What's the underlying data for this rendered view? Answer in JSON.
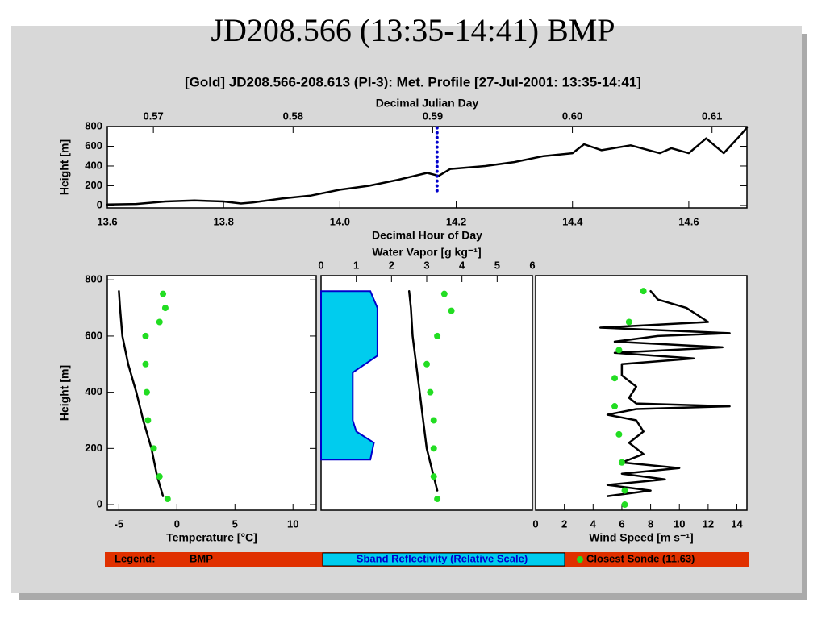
{
  "title": "JD208.566 (13:35-14:41) BMP",
  "subtitle": "[Gold] JD208.566-208.613 (PI-3): Met. Profile [27-Jul-2001: 13:35-14:41]",
  "legend": {
    "title": "Legend:",
    "items": [
      "BMP",
      "Sband Reflectivity (Relative Scale)",
      "Closest Sonde (11.63)"
    ]
  },
  "chart_data": [
    {
      "type": "line",
      "xlabel": "Decimal Hour of Day",
      "x2label": "Decimal Julian Day",
      "ylabel": "Height [m]",
      "x_axis_side": "bottom",
      "xlim": [
        13.6,
        14.7
      ],
      "xticks": [
        13.6,
        13.8,
        {
          "value": 14,
          "label": "14.0"
        },
        14.2,
        14.4,
        14.6
      ],
      "x2lim": [
        0.5667,
        0.6125
      ],
      "x2ticks": [
        0.57,
        0.58,
        0.59,
        {
          "value": 0.6,
          "label": "0.60"
        },
        0.61
      ],
      "ylim": [
        -25,
        800
      ],
      "yticks": [
        0,
        200,
        400,
        600,
        800
      ],
      "series": [
        {
          "color": "#000000",
          "style": "line",
          "x": [
            13.6,
            13.65,
            13.7,
            13.75,
            13.8,
            13.83,
            13.85,
            13.9,
            13.95,
            14.0,
            14.05,
            14.1,
            14.15,
            14.17,
            14.19,
            14.25,
            14.3,
            14.35,
            14.4,
            14.42,
            14.45,
            14.5,
            14.55,
            14.57,
            14.6,
            14.63,
            14.66,
            14.69,
            14.7
          ],
          "y": [
            10,
            15,
            40,
            50,
            40,
            20,
            30,
            70,
            100,
            160,
            200,
            260,
            330,
            300,
            370,
            400,
            440,
            500,
            530,
            620,
            560,
            610,
            530,
            580,
            530,
            680,
            530,
            720,
            790
          ]
        },
        {
          "color": "#0000cc",
          "style": "dotted",
          "x": [
            14.167,
            14.167
          ],
          "y": [
            150,
            800
          ]
        }
      ]
    },
    {
      "type": "line",
      "xlabel": "Temperature [°C]",
      "ylabel": "Height [m]",
      "x_axis_side": "bottom",
      "xlim": [
        -6,
        12
      ],
      "xticks": [
        -5,
        0,
        5,
        10
      ],
      "ylim": [
        -20,
        815
      ],
      "yticks": [
        0,
        200,
        400,
        600,
        800
      ],
      "series": [
        {
          "color": "#000000",
          "style": "line",
          "x": [
            -5,
            -4.9,
            -4.7,
            -4.2,
            -3.5,
            -2.9,
            -2.2,
            -1.7,
            -1.2
          ],
          "y": [
            760,
            700,
            600,
            500,
            400,
            300,
            200,
            100,
            30
          ]
        },
        {
          "color": "#22dd22",
          "style": "markers",
          "x": [
            -1.2,
            -1,
            -1.5,
            -2.7,
            -2.7,
            -2.6,
            -2.5,
            -2,
            -1.5,
            -0.8
          ],
          "y": [
            750,
            700,
            650,
            600,
            500,
            400,
            300,
            200,
            100,
            20
          ]
        }
      ]
    },
    {
      "type": "line",
      "xlabel": "Water Vapor [g kg⁻¹]",
      "x_axis_side": "top",
      "xlim": [
        0,
        6
      ],
      "xticks": [
        0,
        1,
        2,
        3,
        4,
        5,
        6
      ],
      "ylim": [
        -20,
        815
      ],
      "series": [
        {
          "color": "#00ccee",
          "style": "area",
          "x": [
            0,
            1.4,
            1.6,
            1.6,
            0.9,
            0.9,
            1.0,
            1.5,
            1.4,
            0
          ],
          "y": [
            760,
            760,
            700,
            530,
            470,
            300,
            260,
            220,
            160,
            160
          ]
        },
        {
          "color": "#000000",
          "style": "line",
          "x": [
            2.5,
            2.55,
            2.6,
            2.7,
            2.8,
            2.9,
            3.0,
            3.2,
            3.3
          ],
          "y": [
            760,
            700,
            600,
            500,
            400,
            300,
            200,
            100,
            50
          ]
        },
        {
          "color": "#22dd22",
          "style": "markers",
          "x": [
            3.5,
            3.7,
            3.3,
            3.0,
            3.1,
            3.2,
            3.2,
            3.2,
            3.3
          ],
          "y": [
            750,
            690,
            600,
            500,
            400,
            300,
            200,
            100,
            20
          ]
        }
      ]
    },
    {
      "type": "line",
      "xlabel": "Wind Speed [m s⁻¹]",
      "x_axis_side": "bottom",
      "xlim": [
        0,
        14.7
      ],
      "xticks": [
        0,
        2,
        4,
        6,
        8,
        10,
        12,
        14
      ],
      "ylim": [
        -20,
        815
      ],
      "series": [
        {
          "color": "#000000",
          "style": "line",
          "x": [
            5,
            8,
            5,
            9,
            6,
            10,
            6,
            7.5,
            6.5,
            7.5,
            7,
            5,
            7,
            13.5,
            7,
            6.5,
            7,
            6,
            6,
            11,
            5.5,
            13,
            5.5,
            8.5,
            13.5,
            4.5,
            12,
            10.5,
            8.5,
            8
          ],
          "y": [
            30,
            50,
            70,
            90,
            110,
            130,
            150,
            180,
            220,
            260,
            300,
            320,
            340,
            350,
            360,
            380,
            420,
            460,
            500,
            520,
            540,
            560,
            580,
            600,
            610,
            630,
            650,
            700,
            730,
            760
          ]
        },
        {
          "color": "#22dd22",
          "style": "markers",
          "x": [
            7.5,
            6.5,
            5.8,
            5.5,
            5.5,
            5.8,
            6,
            6.2,
            6.2
          ],
          "y": [
            760,
            650,
            550,
            450,
            350,
            250,
            150,
            50,
            0
          ]
        }
      ]
    }
  ]
}
